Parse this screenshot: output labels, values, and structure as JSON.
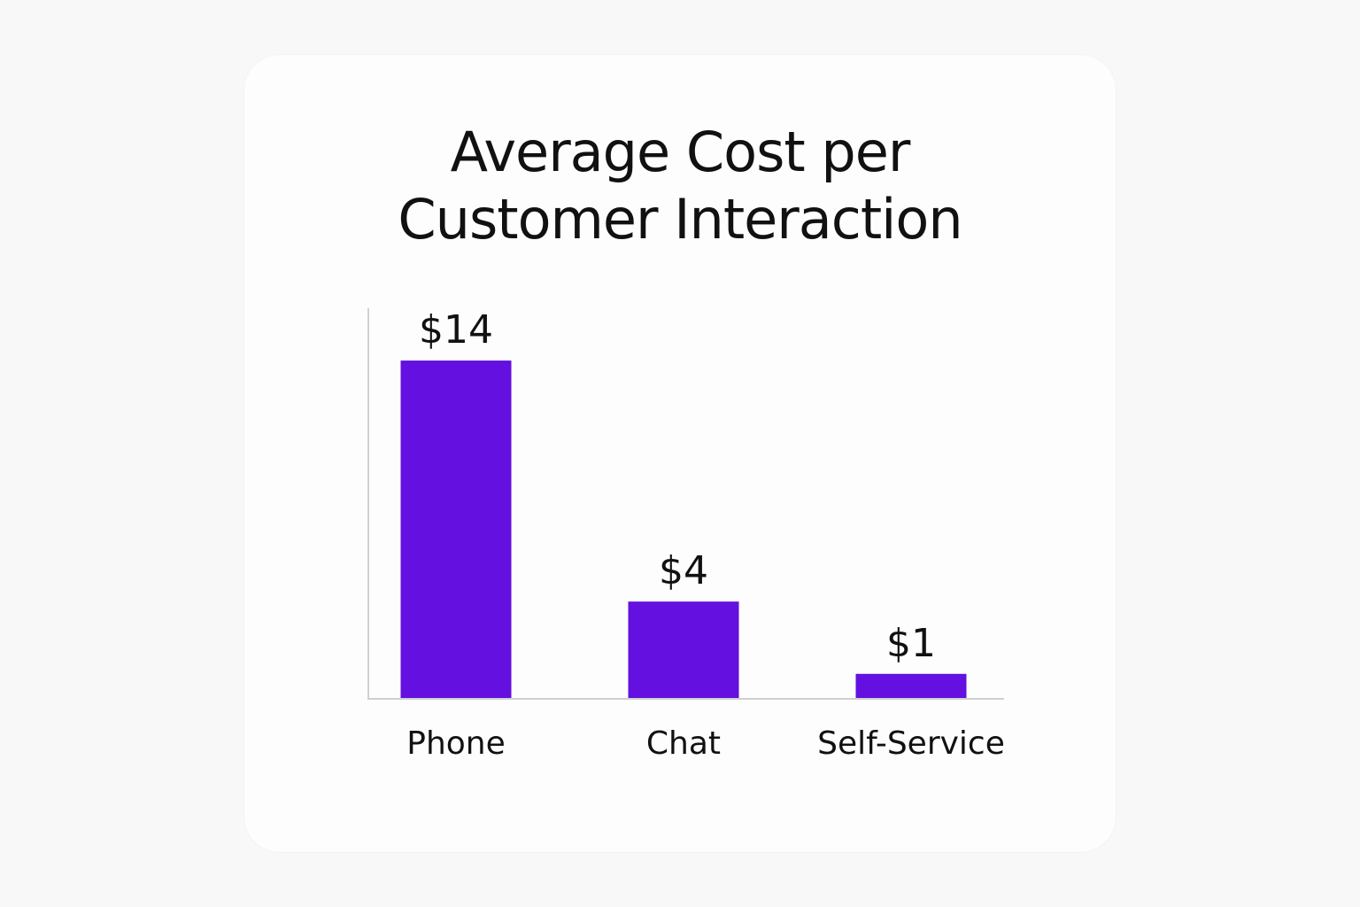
{
  "chart_data": {
    "type": "bar",
    "title": "Average Cost per\nCustomer Interaction",
    "categories": [
      "Phone",
      "Chat",
      "Self-Service"
    ],
    "values": [
      14,
      4,
      1
    ],
    "data_labels": [
      "$14",
      "$4",
      "$1"
    ],
    "unit": "$",
    "ylim": [
      0,
      14
    ],
    "xlabel": "",
    "ylabel": "",
    "grid": false,
    "legend": "none",
    "bar_color": "#6310e0",
    "axis_color": "#d0d0d0",
    "text_color": "#111111"
  }
}
